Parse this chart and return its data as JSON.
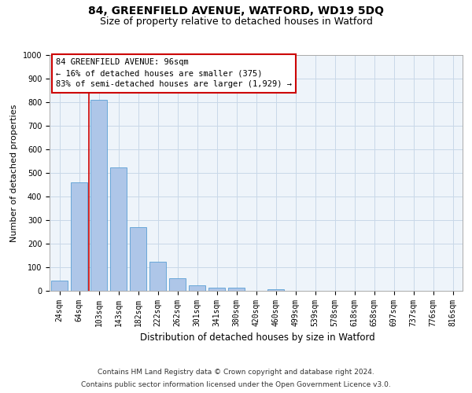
{
  "title1": "84, GREENFIELD AVENUE, WATFORD, WD19 5DQ",
  "title2": "Size of property relative to detached houses in Watford",
  "xlabel": "Distribution of detached houses by size in Watford",
  "ylabel": "Number of detached properties",
  "categories": [
    "24sqm",
    "64sqm",
    "103sqm",
    "143sqm",
    "182sqm",
    "222sqm",
    "262sqm",
    "301sqm",
    "341sqm",
    "380sqm",
    "420sqm",
    "460sqm",
    "499sqm",
    "539sqm",
    "578sqm",
    "618sqm",
    "658sqm",
    "697sqm",
    "737sqm",
    "776sqm",
    "816sqm"
  ],
  "values": [
    45,
    460,
    810,
    525,
    270,
    125,
    55,
    22,
    12,
    12,
    0,
    8,
    0,
    0,
    0,
    0,
    0,
    0,
    0,
    0,
    0
  ],
  "bar_color": "#aec6e8",
  "bar_edge_color": "#5a9fd4",
  "vline_color": "#cc0000",
  "annotation_text": "84 GREENFIELD AVENUE: 96sqm\n← 16% of detached houses are smaller (375)\n83% of semi-detached houses are larger (1,929) →",
  "annotation_box_color": "#ffffff",
  "annotation_box_edge_color": "#cc0000",
  "ylim": [
    0,
    1000
  ],
  "yticks": [
    0,
    100,
    200,
    300,
    400,
    500,
    600,
    700,
    800,
    900,
    1000
  ],
  "grid_color": "#c8d8e8",
  "bg_color": "#eef4fa",
  "footer1": "Contains HM Land Registry data © Crown copyright and database right 2024.",
  "footer2": "Contains public sector information licensed under the Open Government Licence v3.0.",
  "title1_fontsize": 10,
  "title2_fontsize": 9,
  "xlabel_fontsize": 8.5,
  "ylabel_fontsize": 8,
  "tick_fontsize": 7,
  "annotation_fontsize": 7.5,
  "footer_fontsize": 6.5
}
